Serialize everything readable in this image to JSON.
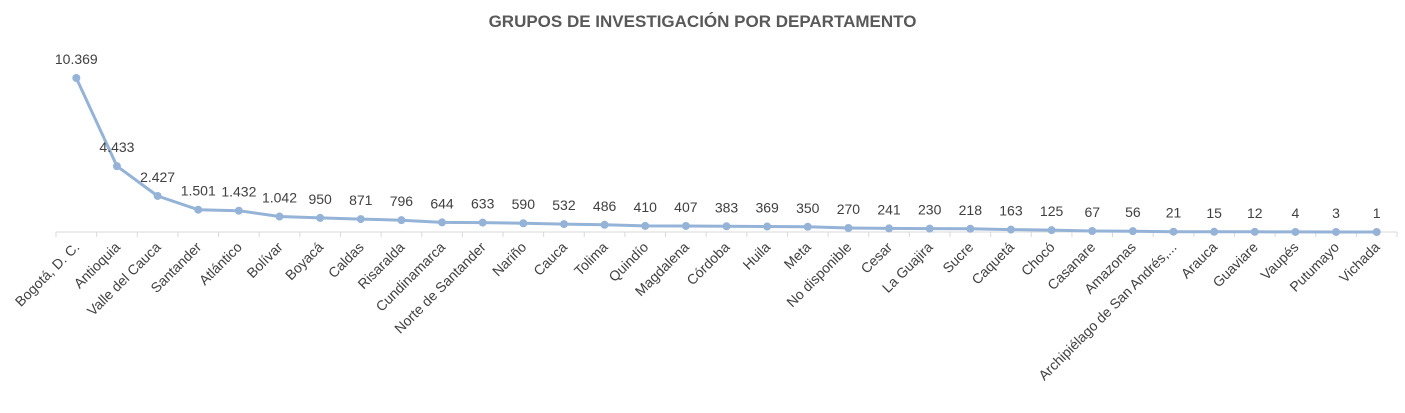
{
  "chart_data": {
    "type": "line",
    "title": "GRUPOS DE INVESTIGACIÓN POR DEPARTAMENTO",
    "xlabel": "",
    "ylabel": "",
    "categories": [
      "Bogotá, D. C.",
      "Antioquia",
      "Valle del Cauca",
      "Santander",
      "Atlántico",
      "Bolívar",
      "Boyacá",
      "Caldas",
      "Risaralda",
      "Cundinamarca",
      "Norte de Santander",
      "Nariño",
      "Cauca",
      "Tolima",
      "Quindío",
      "Magdalena",
      "Córdoba",
      "Huila",
      "Meta",
      "No disponible",
      "Cesar",
      "La Guajira",
      "Sucre",
      "Caquetá",
      "Chocó",
      "Casanare",
      "Amazonas",
      "Archipiélago de San Andrés,...",
      "Arauca",
      "Guaviare",
      "Vaupés",
      "Putumayo",
      "Vichada"
    ],
    "values": [
      10369,
      4433,
      2427,
      1501,
      1432,
      1042,
      950,
      871,
      796,
      644,
      633,
      590,
      532,
      486,
      410,
      407,
      383,
      369,
      350,
      270,
      241,
      230,
      218,
      163,
      125,
      67,
      56,
      21,
      15,
      12,
      4,
      3,
      1
    ],
    "data_labels": [
      "10.369",
      "4.433",
      "2.427",
      "1.501",
      "1.432",
      "1.042",
      "950",
      "871",
      "796",
      "644",
      "633",
      "590",
      "532",
      "486",
      "410",
      "407",
      "383",
      "369",
      "350",
      "270",
      "241",
      "230",
      "218",
      "163",
      "125",
      "67",
      "56",
      "21",
      "15",
      "12",
      "4",
      "3",
      "1"
    ],
    "ylim": [
      0,
      10369
    ],
    "grid": false,
    "legend": "none",
    "line_color": "#95b3d7",
    "axis_color": "#d9d9d9",
    "text_color": "#404040",
    "title_color": "#595959"
  }
}
